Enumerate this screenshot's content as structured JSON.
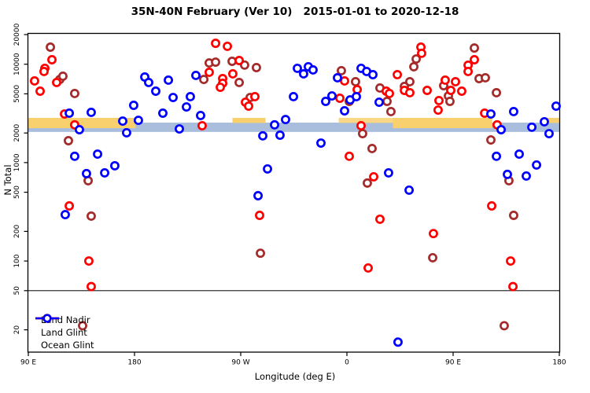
{
  "chart_data": {
    "type": "scatter",
    "title": "35N-40N February (Ver 10)   2015-01-01 to 2020-12-18",
    "xlabel": "Longitude (deg E)",
    "ylabel": "N Total",
    "x_axis": {
      "min": 90,
      "max": 540,
      "ticks": [
        90,
        180,
        270,
        360,
        450,
        540
      ],
      "tick_labels": [
        "90 E",
        "180",
        "90 W",
        "0",
        "90 E",
        "180"
      ]
    },
    "y_axis": {
      "scale": "log",
      "min": 12,
      "max": 21000,
      "ticks": [
        20,
        50,
        100,
        200,
        500,
        1000,
        2000,
        5000,
        10000,
        20000
      ],
      "tick_labels": [
        "20",
        "50",
        "100",
        "200",
        "500",
        "1000",
        "2000",
        "5000",
        "10000",
        "20000"
      ]
    },
    "reference_line_y": 50,
    "bands": {
      "ocean_expected": {
        "color": "#A9BEDC",
        "lon": [
          90,
          540
        ],
        "n_range": [
          2050,
          2550
        ]
      },
      "land_expected": {
        "color": "#F8D06E",
        "n_range": [
          2240,
          2850
        ],
        "segments": [
          {
            "lon": [
              90,
              181
            ],
            "style": "full"
          },
          {
            "lon": [
              263,
              291
            ],
            "style": "sliver"
          },
          {
            "lon": [
              353,
              399
            ],
            "style": "speckle"
          },
          {
            "lon": [
              399,
              483
            ],
            "style": "full"
          },
          {
            "lon": [
              525,
              540
            ],
            "style": "sliver"
          }
        ]
      }
    },
    "legend": {
      "position": "bottom-left",
      "entries": [
        "Land Nadir",
        "Land Glint",
        "Ocean Glint"
      ]
    },
    "series": [
      {
        "name": "Land Nadir",
        "color": "#A52A2A",
        "points": [
          [
            108.7,
            14900
          ],
          [
            116.7,
            7000
          ],
          [
            119.3,
            7550
          ],
          [
            129.3,
            5040
          ],
          [
            124,
            1670
          ],
          [
            140.7,
            655
          ],
          [
            143.3,
            286
          ],
          [
            136,
            22
          ],
          [
            238.7,
            7000
          ],
          [
            243.3,
            10300
          ],
          [
            248.7,
            10500
          ],
          [
            262.7,
            10700
          ],
          [
            273.3,
            9800
          ],
          [
            283.3,
            9240
          ],
          [
            268.7,
            6520
          ],
          [
            278,
            4590
          ],
          [
            286.7,
            120
          ],
          [
            355.3,
            8590
          ],
          [
            362,
            4190
          ],
          [
            367.3,
            6640
          ],
          [
            373.3,
            1970
          ],
          [
            381.3,
            1390
          ],
          [
            377.3,
            620
          ],
          [
            388,
            5730
          ],
          [
            394,
            4190
          ],
          [
            397.3,
            3300
          ],
          [
            408.7,
            5940
          ],
          [
            413.3,
            6640
          ],
          [
            416.7,
            9420
          ],
          [
            418.7,
            11300
          ],
          [
            432.7,
            108
          ],
          [
            442,
            6050
          ],
          [
            446,
            4760
          ],
          [
            447.3,
            4190
          ],
          [
            468,
            14600
          ],
          [
            472,
            7140
          ],
          [
            477.3,
            7280
          ],
          [
            486.7,
            5130
          ],
          [
            482,
            1700
          ],
          [
            497.3,
            655
          ],
          [
            501.3,
            291
          ],
          [
            493.3,
            22
          ]
        ]
      },
      {
        "name": "Land Glint",
        "color": "#FF0000",
        "points": [
          [
            110,
            11100
          ],
          [
            104,
            9080
          ],
          [
            103.3,
            8430
          ],
          [
            95.3,
            6760
          ],
          [
            114,
            6520
          ],
          [
            100,
            5320
          ],
          [
            120.7,
            3120
          ],
          [
            129.3,
            2420
          ],
          [
            124.7,
            363
          ],
          [
            141.3,
            100
          ],
          [
            143.3,
            55
          ],
          [
            248.7,
            16300
          ],
          [
            258.7,
            15200
          ],
          [
            243.3,
            8280
          ],
          [
            268.7,
            10900
          ],
          [
            263.3,
            7980
          ],
          [
            254.7,
            7140
          ],
          [
            254.7,
            6400
          ],
          [
            252.7,
            5830
          ],
          [
            282,
            4680
          ],
          [
            274,
            4110
          ],
          [
            276.7,
            3750
          ],
          [
            237.3,
            2370
          ],
          [
            286,
            291
          ],
          [
            354,
            4510
          ],
          [
            358,
            6760
          ],
          [
            368.7,
            5520
          ],
          [
            372,
            2370
          ],
          [
            362,
            1160
          ],
          [
            382.7,
            718
          ],
          [
            378,
            85
          ],
          [
            388,
            266
          ],
          [
            393.3,
            5320
          ],
          [
            396,
            5040
          ],
          [
            402.7,
            7830
          ],
          [
            408.7,
            5420
          ],
          [
            413.3,
            5130
          ],
          [
            428,
            5420
          ],
          [
            433.3,
            190
          ],
          [
            437.3,
            3420
          ],
          [
            438,
            4270
          ],
          [
            443.3,
            6890
          ],
          [
            448,
            5420
          ],
          [
            452,
            6640
          ],
          [
            457.3,
            5320
          ],
          [
            422.7,
            14900
          ],
          [
            423.3,
            12900
          ],
          [
            462.7,
            9770
          ],
          [
            462.7,
            8430
          ],
          [
            468,
            11100
          ],
          [
            476.7,
            3180
          ],
          [
            487.3,
            2420
          ],
          [
            482.7,
            363
          ],
          [
            498.7,
            100
          ],
          [
            500.7,
            55
          ]
        ]
      },
      {
        "name": "Ocean Glint",
        "color": "#0000FF",
        "points": [
          [
            124.7,
            3180
          ],
          [
            133.3,
            2160
          ],
          [
            129.3,
            1160
          ],
          [
            143.3,
            3240
          ],
          [
            148.7,
            1220
          ],
          [
            139.3,
            773
          ],
          [
            154.7,
            787
          ],
          [
            163.3,
            929
          ],
          [
            121.3,
            296
          ],
          [
            188.7,
            7410
          ],
          [
            192,
            6520
          ],
          [
            198,
            5320
          ],
          [
            208.7,
            6890
          ],
          [
            212.7,
            4590
          ],
          [
            227.3,
            4680
          ],
          [
            224,
            3680
          ],
          [
            179.3,
            3820
          ],
          [
            204,
            3180
          ],
          [
            170,
            2640
          ],
          [
            183.3,
            2690
          ],
          [
            218,
            2200
          ],
          [
            173.3,
            2010
          ],
          [
            236,
            3010
          ],
          [
            232,
            7690
          ],
          [
            308,
            2740
          ],
          [
            298.7,
            2420
          ],
          [
            303.3,
            1900
          ],
          [
            288.7,
            1870
          ],
          [
            292.7,
            863
          ],
          [
            284.7,
            461
          ],
          [
            314.7,
            4680
          ],
          [
            318,
            9080
          ],
          [
            327.3,
            9420
          ],
          [
            331.3,
            8750
          ],
          [
            323.3,
            7980
          ],
          [
            338,
            1580
          ],
          [
            352,
            7280
          ],
          [
            347.3,
            4760
          ],
          [
            342,
            4190
          ],
          [
            358,
            3360
          ],
          [
            362.7,
            4340
          ],
          [
            368,
            4680
          ],
          [
            372,
            9080
          ],
          [
            376.7,
            8430
          ],
          [
            382,
            7830
          ],
          [
            387.3,
            4110
          ],
          [
            395.3,
            787
          ],
          [
            412.7,
            525
          ],
          [
            403.3,
            15
          ],
          [
            482,
            3120
          ],
          [
            501.3,
            3300
          ],
          [
            490.7,
            2160
          ],
          [
            516.7,
            2290
          ],
          [
            527.3,
            2600
          ],
          [
            537.3,
            3750
          ],
          [
            531.3,
            1970
          ],
          [
            486.7,
            1160
          ],
          [
            506,
            1220
          ],
          [
            520.7,
            946
          ],
          [
            512,
            731
          ],
          [
            496,
            759
          ]
        ]
      }
    ]
  }
}
